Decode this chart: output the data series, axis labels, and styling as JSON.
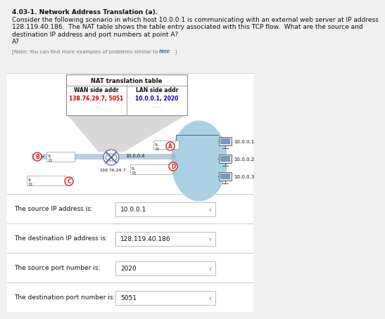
{
  "title_bold": "4.03-1. Network Address Translation (a).",
  "title_rest": "  Consider the following scenario in which host 10.0.0.1 is communicating with an external web server at IP address 128.119.40.186.  The NAT table shows the table entry associated with this TCP flow.  What are the source and destination IP address and port numbers at point A?",
  "note_text": "[Note: You can find more examples of problems similar to this ",
  "note_link": "here",
  "note_end": " .]",
  "nat_table_title": "NAT translation table",
  "nat_col1": "WAN side addr",
  "nat_col2": "LAN side addr",
  "nat_wan": "138.76.29.7, 5051",
  "nat_lan": "10.0.0.1, 2020",
  "router_ip_wan": "138.76.29.7",
  "router_ip_lan": "10.0.0.4",
  "host1": "10.0.0.1",
  "host2": "10.0.0.2",
  "host3": "10.0.0.3",
  "q1_label": "The source IP address is:",
  "q1_answer": "10.0.0.1",
  "q2_label": "The destination IP address is:",
  "q2_answer": "128.119.40.186",
  "q3_label": "The source port number is:",
  "q3_answer": "2020",
  "q4_label": "The destination port number is:",
  "q4_answer": "5051",
  "bg_color": "#f0f0f0",
  "white": "#ffffff",
  "wan_color": "#cc0000",
  "lan_color": "#0000bb",
  "circle_color": "#cc2222",
  "blue_blob": "#9dc8e0",
  "gray_funnel": "#c8c8c8",
  "sep_color": "#cccccc",
  "text_dark": "#111111",
  "text_gray": "#777777",
  "link_color": "#1a5599",
  "box_border": "#bbbbbb",
  "router_line": "#5566aa",
  "cable_color": "#5577aa",
  "monitor_body": "#cccccc",
  "monitor_screen": "#7799bb"
}
